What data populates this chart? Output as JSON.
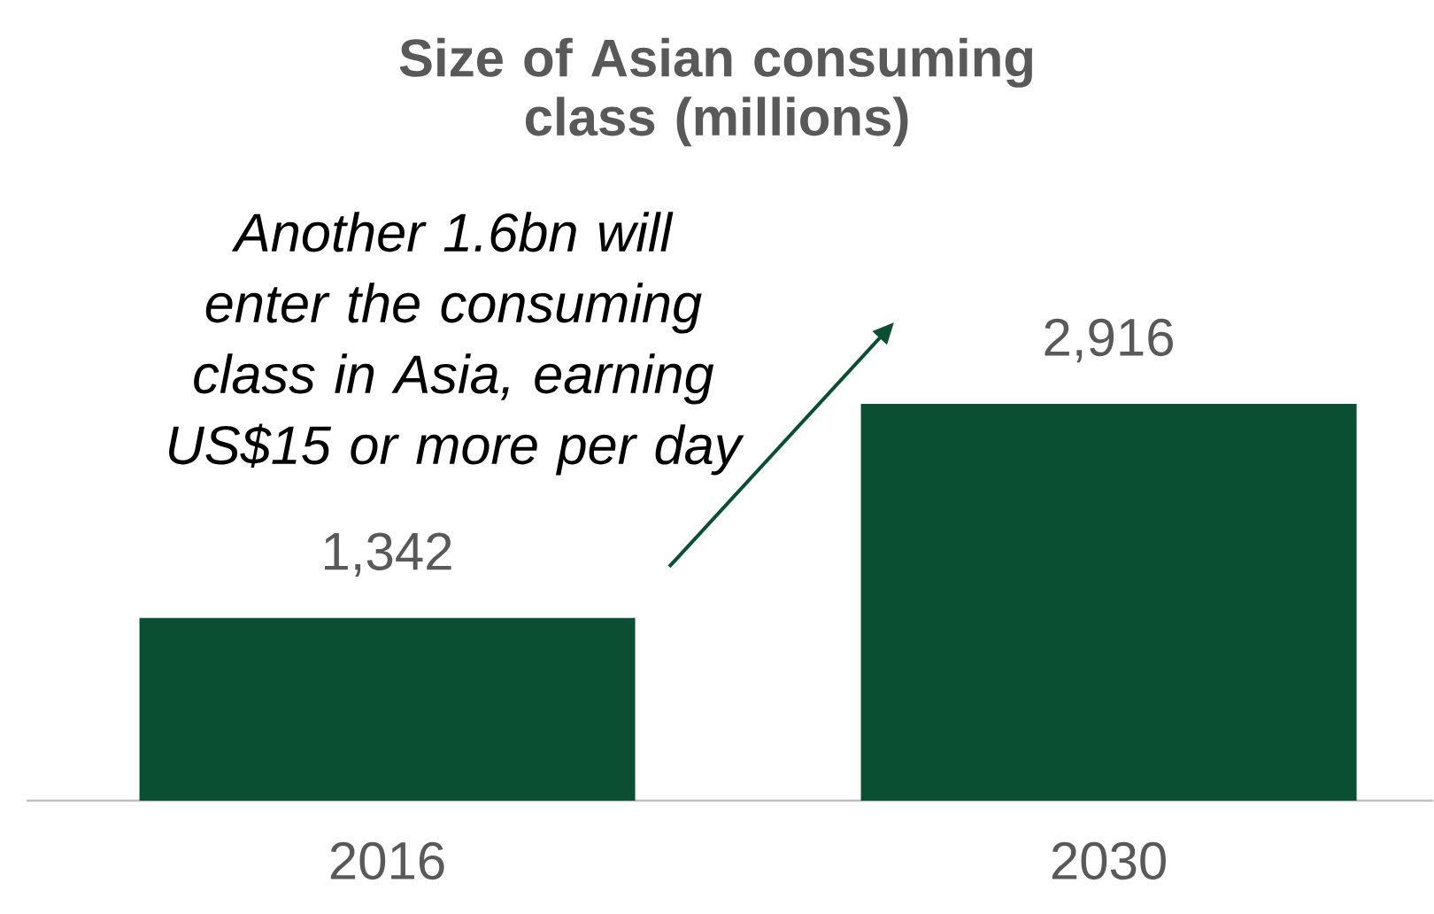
{
  "chart_data": {
    "type": "bar",
    "title": "Size of Asian consuming class (millions)",
    "categories": [
      "2016",
      "2030"
    ],
    "values": [
      1342,
      2916
    ],
    "colors": [
      "#0b4f32",
      "#0b4f32"
    ],
    "value_labels": [
      "1,342",
      "2,916"
    ],
    "annotations": [
      "Another 1.6bn will enter the consuming class in Asia, earning US$15 or more per day"
    ]
  }
}
